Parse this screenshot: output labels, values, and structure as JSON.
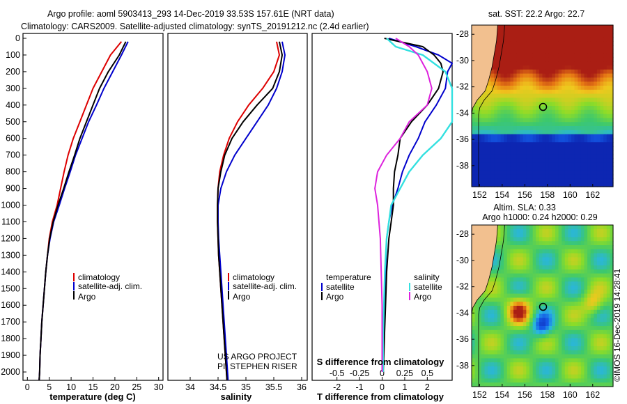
{
  "header": {
    "line1": "Argo profile: aoml 5903413_293 14-Dec-2019 33.53S 157.61E (NRT data)",
    "line2": "Climatology: CARS2009. Satellite-adjusted climatology: synTS_20191212.nc (2.4d earlier)"
  },
  "colors": {
    "climatology": "#dd0000",
    "satellite": "#0000cc",
    "argo": "#000000",
    "sal_satellite": "#33e0e0",
    "sal_argo": "#dd22dd",
    "land": "#f2c08f"
  },
  "depth_ticks": [
    "0",
    "100",
    "200",
    "300",
    "400",
    "500",
    "600",
    "700",
    "800",
    "900",
    "1000",
    "1100",
    "1200",
    "1300",
    "1400",
    "1500",
    "1600",
    "1700",
    "1800",
    "1900",
    "2000"
  ],
  "chart_data": [
    {
      "type": "line",
      "panel": "temperature",
      "xlabel": "temperature (deg C)",
      "xlim": [
        -1,
        31
      ],
      "ylim": [
        2050,
        0
      ],
      "xticks": [
        "0",
        "5",
        "10",
        "15",
        "20",
        "25",
        "30"
      ],
      "legend": [
        "climatology",
        "satellite-adj. clim.",
        "Argo"
      ],
      "series": [
        {
          "name": "climatology",
          "depth": [
            20,
            100,
            200,
            300,
            400,
            500,
            600,
            700,
            800,
            900,
            1000,
            1100,
            1200,
            1300,
            1400,
            1500,
            1600,
            1700,
            1800,
            1900,
            2000,
            2050
          ],
          "values": [
            21.5,
            19,
            17,
            15,
            13.5,
            12,
            10.5,
            9.3,
            8.4,
            7.6,
            6.8,
            5.7,
            5,
            4.6,
            4.2,
            3.9,
            3.6,
            3.3,
            3.1,
            2.9,
            2.8,
            2.7
          ]
        },
        {
          "name": "satellite-adj. clim.",
          "depth": [
            20,
            100,
            200,
            300,
            400,
            500,
            600,
            700,
            800,
            900,
            1000,
            1100,
            1200,
            1300,
            1400,
            1500,
            1600,
            1700,
            1800,
            1900,
            2000,
            2050
          ],
          "values": [
            23,
            21.5,
            19.5,
            17.5,
            15.8,
            14,
            12.5,
            11,
            9.8,
            8.5,
            7.3,
            6,
            5.2,
            4.6,
            4.2,
            3.9,
            3.6,
            3.3,
            3.1,
            2.9,
            2.8,
            2.7
          ]
        },
        {
          "name": "Argo",
          "depth": [
            20,
            100,
            200,
            300,
            400,
            500,
            600,
            700,
            800,
            900,
            1000,
            1100,
            1200,
            1300,
            1400,
            1500,
            1600,
            1700,
            1800,
            1900,
            2000,
            2050
          ],
          "values": [
            22.5,
            21,
            18.5,
            16.5,
            15,
            13.5,
            12,
            10.8,
            9.5,
            8.3,
            7,
            5.9,
            5.1,
            4.6,
            4.2,
            3.9,
            3.6,
            3.3,
            3.1,
            2.9,
            2.8,
            2.7
          ]
        }
      ]
    },
    {
      "type": "line",
      "panel": "salinity",
      "xlabel": "salinity",
      "xlim": [
        33.6,
        36.1
      ],
      "ylim": [
        2050,
        0
      ],
      "xticks": [
        "34",
        "34.5",
        "35",
        "35.5",
        "36"
      ],
      "legend": [
        "climatology",
        "satellite-adj. clim.",
        "Argo"
      ],
      "credit": [
        "US ARGO PROJECT",
        "PI: STEPHEN RISER"
      ],
      "series": [
        {
          "name": "climatology",
          "depth": [
            20,
            100,
            200,
            300,
            400,
            500,
            600,
            700,
            800,
            900,
            1000,
            1100,
            1200,
            1300,
            1400,
            1500,
            1600,
            1700,
            1800,
            1900,
            2000,
            2050
          ],
          "values": [
            35.55,
            35.6,
            35.5,
            35.3,
            35.05,
            34.85,
            34.7,
            34.6,
            34.53,
            34.5,
            34.49,
            34.49,
            34.5,
            34.51,
            34.53,
            34.55,
            34.57,
            34.59,
            34.61,
            34.63,
            34.65,
            34.66
          ]
        },
        {
          "name": "satellite-adj. clim.",
          "depth": [
            20,
            100,
            200,
            300,
            400,
            500,
            600,
            700,
            800,
            900,
            1000,
            1100,
            1200,
            1300,
            1400,
            1500,
            1600,
            1700,
            1800,
            1900,
            2000,
            2050
          ],
          "values": [
            35.65,
            35.7,
            35.65,
            35.55,
            35.4,
            35.2,
            35.0,
            34.8,
            34.65,
            34.55,
            34.5,
            34.5,
            34.51,
            34.53,
            34.55,
            34.57,
            34.59,
            34.61,
            34.63,
            34.65,
            34.67,
            34.68
          ]
        },
        {
          "name": "Argo",
          "depth": [
            20,
            100,
            200,
            300,
            400,
            500,
            600,
            700,
            800,
            900,
            1000,
            1100,
            1200,
            1300,
            1400,
            1500,
            1600,
            1700,
            1800,
            1900,
            2000,
            2050
          ],
          "values": [
            35.6,
            35.65,
            35.6,
            35.48,
            35.2,
            34.95,
            34.75,
            34.62,
            34.55,
            34.5,
            34.49,
            34.49,
            34.5,
            34.51,
            34.53,
            34.55,
            34.57,
            34.59,
            34.61,
            34.63,
            34.65,
            34.66
          ]
        }
      ]
    },
    {
      "type": "line",
      "panel": "difference",
      "xlabel": "T difference from climatology",
      "xlabel_top": "S difference from climatology",
      "xlim": [
        -3.1,
        3.1
      ],
      "ylim": [
        2050,
        0
      ],
      "xticks": [
        "-2",
        "-1",
        "0",
        "1",
        "2"
      ],
      "xticks_s": [
        "-0.5",
        "-0.25",
        "0",
        "0.25",
        "0.5"
      ],
      "legend_temperature": {
        "title": "temperature",
        "items": [
          "satellite",
          "Argo"
        ]
      },
      "legend_salinity": {
        "title": "salinity",
        "items": [
          "satellite",
          "Argo"
        ]
      },
      "series": [
        {
          "name": "temperature satellite",
          "depth": [
            0,
            50,
            100,
            150,
            200,
            300,
            400,
            500,
            600,
            700,
            800,
            900,
            1000,
            1100,
            1200,
            1400,
            1600,
            1800,
            2000
          ],
          "values": [
            0.3,
            1.5,
            2.5,
            3.2,
            2.9,
            2.8,
            2.4,
            1.9,
            1.6,
            1.2,
            0.9,
            0.7,
            0.45,
            0.3,
            0.2,
            0.15,
            0.1,
            0.05,
            0.03
          ]
        },
        {
          "name": "temperature Argo",
          "depth": [
            0,
            50,
            100,
            150,
            200,
            300,
            400,
            500,
            600,
            700,
            800,
            900,
            1000,
            1100,
            1200,
            1400,
            1600,
            1800,
            2000
          ],
          "values": [
            0.1,
            1.8,
            2.3,
            2.6,
            2.7,
            2.5,
            2.0,
            1.3,
            0.8,
            0.7,
            0.55,
            0.5,
            0.5,
            0.4,
            0.3,
            0.2,
            0.15,
            0.1,
            0.05
          ]
        },
        {
          "name": "salinity satellite",
          "depth": [
            0,
            50,
            100,
            200,
            300,
            400,
            500,
            600,
            700,
            800,
            900,
            1000,
            1200,
            1400,
            1600,
            1800,
            2000
          ],
          "values": [
            0.05,
            0.15,
            0.45,
            0.7,
            0.8,
            0.9,
            0.8,
            0.65,
            0.45,
            0.3,
            0.2,
            0.1,
            0.05,
            0.03,
            0.02,
            0.01,
            0.01
          ]
        },
        {
          "name": "salinity Argo",
          "depth": [
            0,
            50,
            100,
            200,
            300,
            400,
            500,
            600,
            700,
            800,
            900,
            1000,
            1200,
            1400,
            1600,
            1800,
            2000
          ],
          "values": [
            0.15,
            0.3,
            0.4,
            0.5,
            0.55,
            0.5,
            0.3,
            0.2,
            0.05,
            -0.05,
            -0.08,
            -0.05,
            -0.02,
            -0.01,
            0.0,
            0.0,
            0.0
          ]
        }
      ]
    }
  ],
  "maps": {
    "sst_title": "sat. SST: 22.2 Argo: 22.7",
    "sla_title1": "Altim. SLA: 0.33",
    "sla_title2": "Argo h1000: 0.24 h2000: 0.29",
    "lat_ticks": [
      "-28",
      "-30",
      "-32",
      "-34",
      "-36",
      "-38"
    ],
    "lon_ticks": [
      "152",
      "154",
      "156",
      "158",
      "160",
      "162"
    ],
    "profile_lon": 157.61,
    "profile_lat": -33.53,
    "credit": "©IMOS 16-Dec-2019 14:28:41"
  }
}
